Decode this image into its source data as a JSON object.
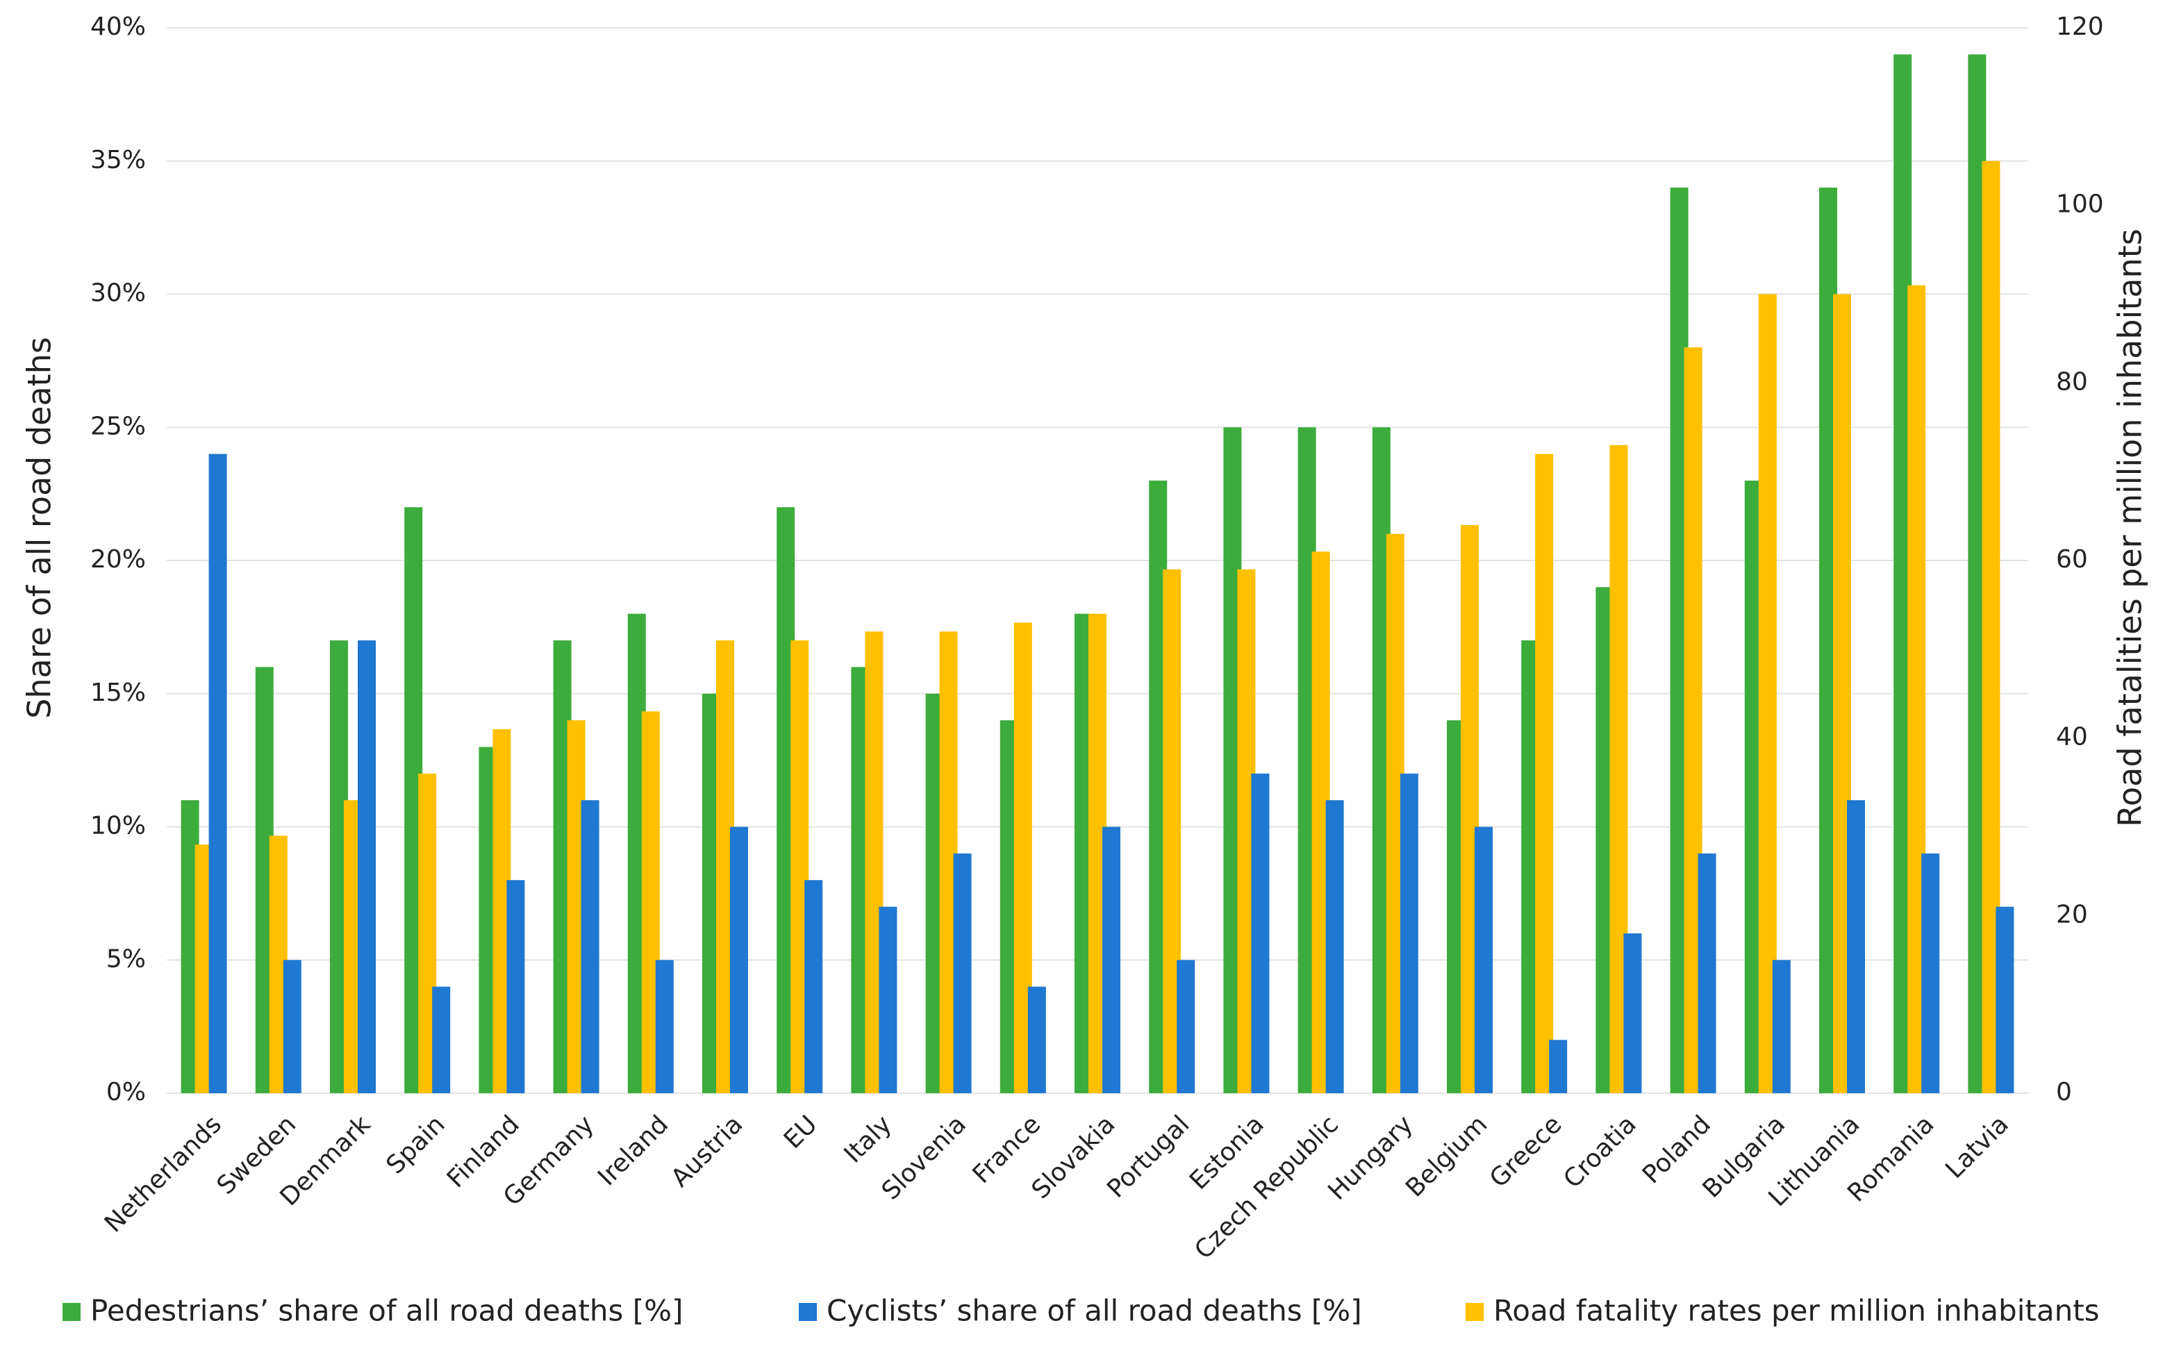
{
  "chart_data": {
    "type": "bar",
    "categories": [
      "Netherlands",
      "Sweden",
      "Denmark",
      "Spain",
      "Finland",
      "Germany",
      "Ireland",
      "Austria",
      "EU",
      "Italy",
      "Slovenia",
      "France",
      "Slovakia",
      "Portugal",
      "Estonia",
      "Czech Republic",
      "Hungary",
      "Belgium",
      "Greece",
      "Croatia",
      "Poland",
      "Bulgaria",
      "Lithuania",
      "Romania",
      "Latvia"
    ],
    "series": [
      {
        "name": "Pedestrians’ share of all road deaths [%]",
        "color": "#3cac3c",
        "values": [
          11,
          16,
          17,
          22,
          13,
          17,
          18,
          15,
          22,
          16,
          15,
          14,
          18,
          23,
          25,
          25,
          25,
          14,
          17,
          19,
          34,
          23,
          34,
          39,
          39
        ]
      },
      {
        "name": "Cyclists’ share of all road deaths [%]",
        "color": "#1f78d1",
        "values": [
          24,
          5,
          17,
          4,
          8,
          11,
          5,
          10,
          8,
          7,
          9,
          4,
          10,
          5,
          12,
          11,
          12,
          10,
          2,
          6,
          9,
          5,
          11,
          9,
          7
        ]
      },
      {
        "name": "Road fatality rates per million inhabitants",
        "color": "#ffc000",
        "axis": "y2",
        "values": [
          28,
          29,
          33,
          36,
          41,
          42,
          43,
          51,
          51,
          52,
          52,
          53,
          54,
          59,
          59,
          61,
          63,
          64,
          72,
          73,
          84,
          90,
          90,
          91,
          105
        ]
      }
    ],
    "y_label": "Share of all road deaths",
    "y2_label": "Road fatalities per million inhabitants",
    "ylim": [
      0,
      40
    ],
    "yticks": [
      {
        "value": 0,
        "label": "0%"
      },
      {
        "value": 5,
        "label": "5%"
      },
      {
        "value": 10,
        "label": "10%"
      },
      {
        "value": 15,
        "label": "15%"
      },
      {
        "value": 20,
        "label": "20%"
      },
      {
        "value": 25,
        "label": "25%"
      },
      {
        "value": 30,
        "label": "30%"
      },
      {
        "value": 35,
        "label": "35%"
      },
      {
        "value": 40,
        "label": "40%"
      }
    ],
    "y2lim": [
      0,
      120
    ],
    "y2ticks": [
      0,
      20,
      40,
      60,
      80,
      100,
      120
    ],
    "grid": true
  }
}
